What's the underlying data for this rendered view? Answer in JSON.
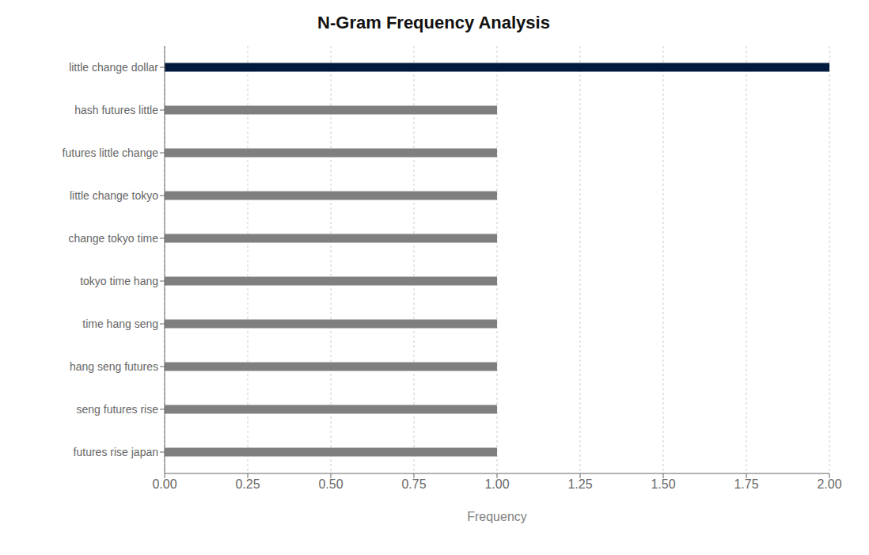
{
  "chart_data": {
    "type": "bar",
    "title": "N-Gram Frequency Analysis",
    "orientation": "horizontal",
    "categories": [
      "futures rise japan",
      "seng futures rise",
      "hang seng futures",
      "time hang seng",
      "tokyo time hang",
      "change tokyo time",
      "little change tokyo",
      "futures little change",
      "hash futures little",
      "little change dollar"
    ],
    "values": [
      1,
      1,
      1,
      1,
      1,
      1,
      1,
      1,
      1,
      2
    ],
    "colors": [
      "#7f7f7f",
      "#7f7f7f",
      "#7f7f7f",
      "#7f7f7f",
      "#7f7f7f",
      "#7f7f7f",
      "#7f7f7f",
      "#7f7f7f",
      "#7f7f7f",
      "#001a3d"
    ],
    "xlabel": "Frequency",
    "xlim": [
      0,
      2.0
    ],
    "xticks": [
      {
        "value": 0,
        "label": "0.00"
      },
      {
        "value": 0.25,
        "label": "0.25"
      },
      {
        "value": 0.5,
        "label": "0.50"
      },
      {
        "value": 0.75,
        "label": "0.75"
      },
      {
        "value": 1.0,
        "label": "1.00"
      },
      {
        "value": 1.25,
        "label": "1.25"
      },
      {
        "value": 1.5,
        "label": "1.50"
      },
      {
        "value": 1.75,
        "label": "1.75"
      },
      {
        "value": 2.0,
        "label": "2.00"
      }
    ],
    "grid": true
  }
}
